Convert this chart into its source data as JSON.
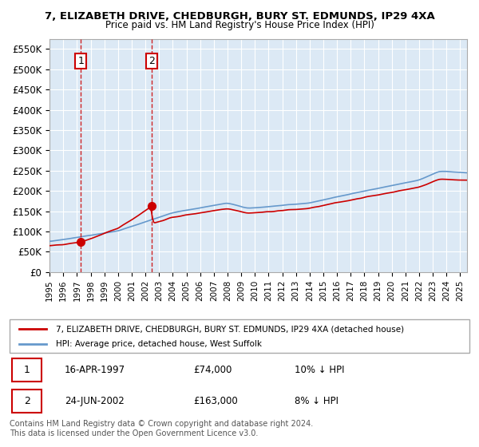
{
  "title": "7, ELIZABETH DRIVE, CHEDBURGH, BURY ST. EDMUNDS, IP29 4XA",
  "subtitle": "Price paid vs. HM Land Registry's House Price Index (HPI)",
  "ylabel_ticks": [
    "£0",
    "£50K",
    "£100K",
    "£150K",
    "£200K",
    "£250K",
    "£300K",
    "£350K",
    "£400K",
    "£450K",
    "£500K",
    "£550K"
  ],
  "ytick_vals": [
    0,
    50000,
    100000,
    150000,
    200000,
    250000,
    300000,
    350000,
    400000,
    450000,
    500000,
    550000
  ],
  "xlim": [
    1995.0,
    2025.5
  ],
  "ylim": [
    0,
    575000
  ],
  "background_color": "#dce9f5",
  "plot_bg_color": "#dce9f5",
  "sale1_x": 1997.29,
  "sale1_y": 74000,
  "sale1_label": "1",
  "sale1_date": "16-APR-1997",
  "sale1_price": "£74,000",
  "sale1_hpi": "10% ↓ HPI",
  "sale2_x": 2002.48,
  "sale2_y": 163000,
  "sale2_label": "2",
  "sale2_date": "24-JUN-2002",
  "sale2_price": "£163,000",
  "sale2_hpi": "8% ↓ HPI",
  "legend_line1": "7, ELIZABETH DRIVE, CHEDBURGH, BURY ST. EDMUNDS, IP29 4XA (detached house)",
  "legend_line2": "HPI: Average price, detached house, West Suffolk",
  "footer": "Contains HM Land Registry data © Crown copyright and database right 2024.\nThis data is licensed under the Open Government Licence v3.0.",
  "red_color": "#cc0000",
  "blue_color": "#6699cc",
  "grid_color": "#ffffff"
}
